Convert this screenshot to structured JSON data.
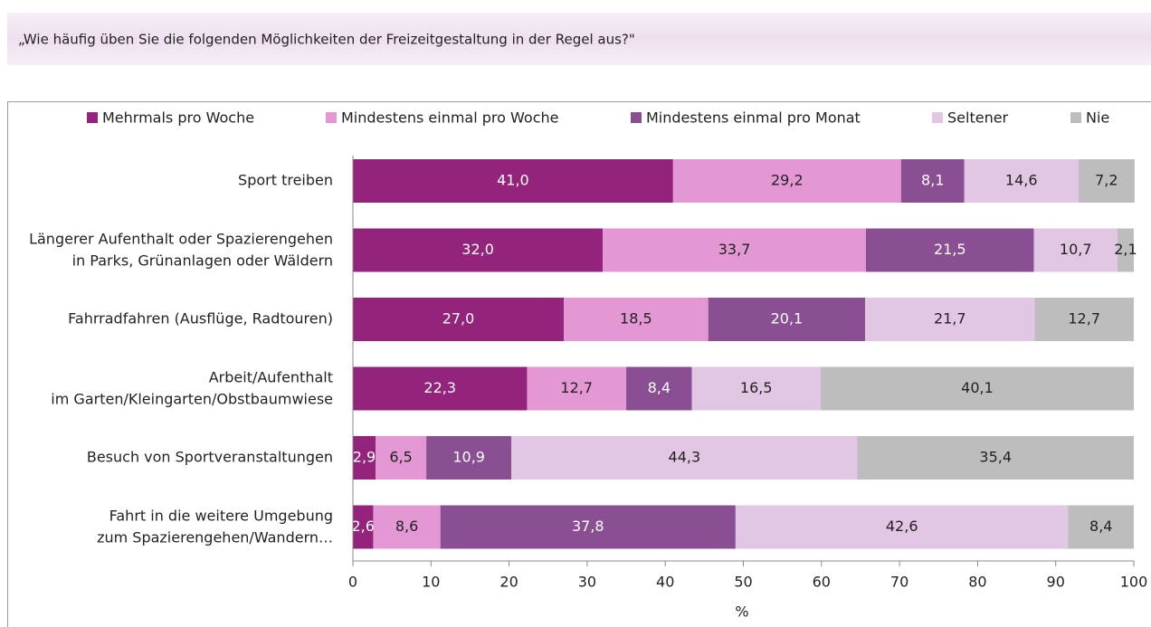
{
  "header": {
    "question": "„Wie häufig üben Sie die folgenden Möglichkeiten der Freizeitgestaltung in der Regel aus?\""
  },
  "chart_data": {
    "type": "stacked-bar-horizontal",
    "categories": [
      "Sport treiben",
      "Längerer Aufenthalt oder Spazierengehen\nin Parks, Grünanlagen oder Wäldern",
      "Fahrradfahren (Ausflüge, Radtouren)",
      "Arbeit/Aufenthalt\nim Garten/Kleingarten/Obstbaumwiese",
      "Besuch von Sportveranstaltungen",
      "Fahrt in die weitere Umgebung\nzum Spazierengehen/Wandern…"
    ],
    "series": [
      {
        "name": "Mehrmals pro Woche",
        "color": "#93237b",
        "values": [
          41.0,
          32.0,
          27.0,
          22.3,
          2.9,
          2.6
        ],
        "value_labels": [
          "41,0",
          "32,0",
          "27,0",
          "22,3",
          "2,9",
          "2,6"
        ]
      },
      {
        "name": "Mindestens einmal pro Woche",
        "color": "#e498d3",
        "values": [
          29.2,
          33.7,
          18.5,
          12.7,
          6.5,
          8.6
        ],
        "value_labels": [
          "29,2",
          "33,7",
          "18,5",
          "12,7",
          "6,5",
          "8,6"
        ]
      },
      {
        "name": "Mindestens einmal pro Monat",
        "color": "#8a4f92",
        "values": [
          8.1,
          21.5,
          20.1,
          8.4,
          10.9,
          37.8
        ],
        "value_labels": [
          "8,1",
          "21,5",
          "20,1",
          "8,4",
          "10,9",
          "37,8"
        ]
      },
      {
        "name": "Seltener",
        "color": "#e1c7e3",
        "values": [
          14.6,
          10.7,
          21.7,
          16.5,
          44.3,
          42.6
        ],
        "value_labels": [
          "14,6",
          "10,7",
          "21,7",
          "16,5",
          "44,3",
          "42,6"
        ]
      },
      {
        "name": "Nie",
        "color": "#bdbdbd",
        "values": [
          7.2,
          2.1,
          12.7,
          40.1,
          35.4,
          8.4
        ],
        "value_labels": [
          "7,2",
          "2,1",
          "12,7",
          "40,1",
          "35,4",
          "8,4"
        ]
      }
    ],
    "xlabel": "%",
    "xlim": [
      0,
      100
    ],
    "xticks": [
      0,
      10,
      20,
      30,
      40,
      50,
      60,
      70,
      80,
      90,
      100
    ],
    "legend": "top"
  }
}
